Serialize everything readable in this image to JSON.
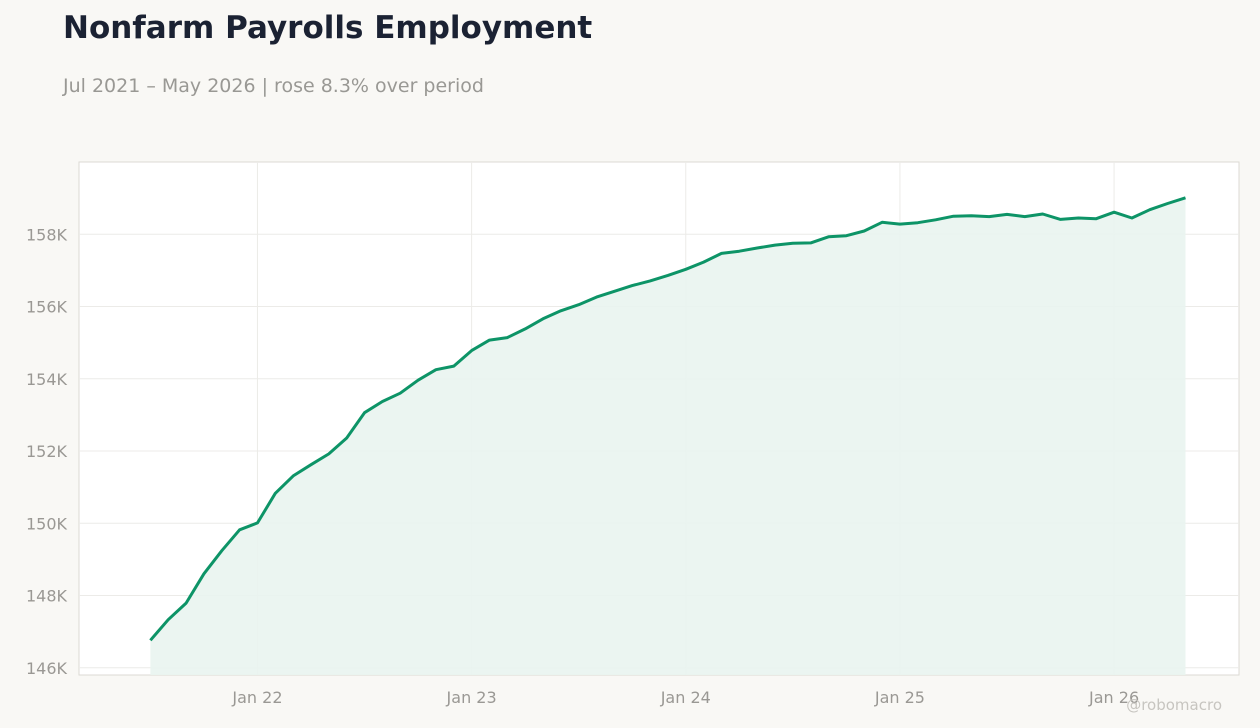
{
  "header": {
    "title": "Nonfarm Payrolls Employment",
    "subtitle": "Jul 2021 – May 2026 | rose 8.3% over period"
  },
  "watermark": "@robomacro",
  "colors": {
    "line": "#0d9467",
    "area": "#e9f4ef",
    "background": "#f9f8f5",
    "plot_background": "#ffffff",
    "grid": "#ecebe8"
  },
  "chart_data": {
    "type": "area",
    "title": "Nonfarm Payrolls Employment",
    "subtitle": "Jul 2021 – May 2026 | rose 8.3% over period",
    "xlabel": "",
    "ylabel": "",
    "ylim": [
      145800,
      160000
    ],
    "xlim": [
      "2021-03",
      "2026-08"
    ],
    "grid": true,
    "y_ticks": [
      {
        "value": 146000,
        "label": "146K"
      },
      {
        "value": 148000,
        "label": "148K"
      },
      {
        "value": 150000,
        "label": "150K"
      },
      {
        "value": 152000,
        "label": "152K"
      },
      {
        "value": 154000,
        "label": "154K"
      },
      {
        "value": 156000,
        "label": "156K"
      },
      {
        "value": 158000,
        "label": "158K"
      }
    ],
    "x_ticks": [
      {
        "value": "2022-01",
        "label": "Jan 22"
      },
      {
        "value": "2023-01",
        "label": "Jan 23"
      },
      {
        "value": "2024-01",
        "label": "Jan 24"
      },
      {
        "value": "2025-01",
        "label": "Jan 25"
      },
      {
        "value": "2026-01",
        "label": "Jan 26"
      }
    ],
    "series": [
      {
        "x": [
          "2021-07",
          "2021-08",
          "2021-09",
          "2021-10",
          "2021-11",
          "2021-12",
          "2022-01",
          "2022-02",
          "2022-03",
          "2022-04",
          "2022-05",
          "2022-06",
          "2022-07",
          "2022-08",
          "2022-09",
          "2022-10",
          "2022-11",
          "2022-12",
          "2023-01",
          "2023-02",
          "2023-03",
          "2023-04",
          "2023-05",
          "2023-06",
          "2023-07",
          "2023-08",
          "2023-09",
          "2023-10",
          "2023-11",
          "2023-12",
          "2024-01",
          "2024-02",
          "2024-03",
          "2024-04",
          "2024-05",
          "2024-06",
          "2024-07",
          "2024-08",
          "2024-09",
          "2024-10",
          "2024-11",
          "2024-12",
          "2025-01",
          "2025-02",
          "2025-03",
          "2025-04",
          "2025-05",
          "2025-06",
          "2025-07",
          "2025-08",
          "2025-09",
          "2025-10",
          "2025-11",
          "2025-12",
          "2026-01",
          "2026-02",
          "2026-03",
          "2026-04",
          "2026-05"
        ],
        "values": [
          146760,
          147330,
          147790,
          148600,
          149240,
          149820,
          150010,
          150830,
          151310,
          151620,
          151920,
          152360,
          153060,
          153370,
          153600,
          153960,
          154250,
          154350,
          154780,
          155070,
          155140,
          155380,
          155660,
          155880,
          156050,
          156260,
          156420,
          156580,
          156710,
          156860,
          157030,
          157230,
          157470,
          157530,
          157620,
          157700,
          157750,
          157760,
          157930,
          157960,
          158090,
          158330,
          158280,
          158320,
          158400,
          158500,
          158510,
          158490,
          158550,
          158490,
          158560,
          158410,
          158450,
          158430,
          158610,
          158450,
          158680,
          158850,
          159010
        ]
      }
    ]
  }
}
